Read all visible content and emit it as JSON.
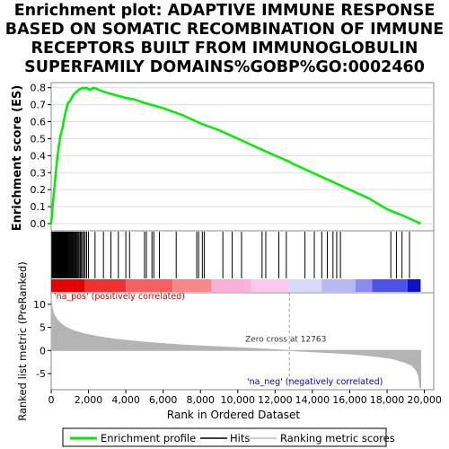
{
  "title_lines": [
    "Enrichment plot: ADAPTIVE IMMUNE RESPONSE",
    "BASED ON SOMATIC RECOMBINATION OF IMMUNE",
    "RECEPTORS BUILT FROM IMMUNOGLOBULIN",
    "SUPERFAMILY DOMAINS%GOBP%GO:0002460"
  ],
  "chart_data": {
    "type": "line",
    "x_max": 19800,
    "es_panel": {
      "ylabel": "Enrichment score (ES)",
      "ylim": [
        0,
        0.83
      ],
      "yticks": [
        0.0,
        0.1,
        0.2,
        0.3,
        0.4,
        0.5,
        0.6,
        0.7,
        0.8
      ],
      "line_color": "#00ee00",
      "series": [
        {
          "name": "Enrichment profile",
          "x": [
            0,
            100,
            200,
            300,
            400,
            500,
            600,
            700,
            800,
            900,
            1000,
            1100,
            1200,
            1300,
            1400,
            1500,
            1600,
            1700,
            1800,
            1900,
            2000,
            2100,
            2200,
            2300,
            2400,
            2600,
            3000,
            3500,
            4000,
            4500,
            5000,
            5500,
            6000,
            7000,
            8000,
            9000,
            10000,
            11000,
            12000,
            12763,
            13000,
            14000,
            15000,
            16000,
            17000,
            18000,
            19000,
            19800
          ],
          "y": [
            0.0,
            0.13,
            0.25,
            0.36,
            0.45,
            0.52,
            0.56,
            0.62,
            0.67,
            0.71,
            0.72,
            0.74,
            0.76,
            0.77,
            0.78,
            0.79,
            0.795,
            0.8,
            0.798,
            0.8,
            0.79,
            0.79,
            0.795,
            0.8,
            0.795,
            0.785,
            0.77,
            0.755,
            0.74,
            0.73,
            0.71,
            0.695,
            0.68,
            0.64,
            0.59,
            0.55,
            0.5,
            0.45,
            0.4,
            0.365,
            0.35,
            0.3,
            0.25,
            0.2,
            0.15,
            0.085,
            0.04,
            0.0
          ]
        }
      ]
    },
    "hits_panel": {
      "legend_label": "Hits",
      "hit_positions": [
        40,
        70,
        100,
        130,
        160,
        190,
        220,
        250,
        280,
        310,
        340,
        370,
        400,
        430,
        460,
        490,
        520,
        550,
        580,
        610,
        640,
        670,
        700,
        730,
        760,
        790,
        820,
        850,
        880,
        910,
        950,
        990,
        1030,
        1070,
        1110,
        1150,
        1200,
        1250,
        1300,
        1350,
        1400,
        1450,
        1500,
        1560,
        1620,
        1680,
        1750,
        1820,
        1900,
        2000,
        2350,
        2800,
        3200,
        3600,
        4000,
        4200,
        5000,
        5100,
        5400,
        5500,
        5800,
        6700,
        7800,
        7900,
        8100,
        8200,
        9200,
        9700,
        10200,
        11300,
        11500,
        12200,
        12600,
        13600,
        14100,
        14500,
        14800,
        15100,
        15300,
        15500,
        18200,
        18500,
        18800,
        19200
      ],
      "colorbar": [
        {
          "start": 0,
          "end": 1800,
          "color": "#e60000"
        },
        {
          "start": 1800,
          "end": 4000,
          "color": "#f03030"
        },
        {
          "start": 4000,
          "end": 6500,
          "color": "#f46060"
        },
        {
          "start": 6500,
          "end": 8600,
          "color": "#f88888"
        },
        {
          "start": 8600,
          "end": 10700,
          "color": "#fbb0d8"
        },
        {
          "start": 10700,
          "end": 12763,
          "color": "#fcc8f0"
        },
        {
          "start": 12763,
          "end": 14500,
          "color": "#d8d8f8"
        },
        {
          "start": 14500,
          "end": 16300,
          "color": "#b8b8f4"
        },
        {
          "start": 16300,
          "end": 17200,
          "color": "#8a8af0"
        },
        {
          "start": 17200,
          "end": 19100,
          "color": "#5050e8"
        },
        {
          "start": 19100,
          "end": 19800,
          "color": "#1010c8"
        }
      ]
    },
    "metric_panel": {
      "ylabel": "Ranked list metric (PreRanked)",
      "xlabel": "Rank in Ordered Dataset",
      "ylim": [
        -8.5,
        12.5
      ],
      "yticks": [
        -5,
        0,
        5,
        10
      ],
      "xticks": [
        0,
        2000,
        4000,
        6000,
        8000,
        10000,
        12000,
        14000,
        16000,
        18000,
        20000
      ],
      "xtick_labels": [
        "0",
        "2,000",
        "4,000",
        "6,000",
        "8,000",
        "10,000",
        "12,000",
        "14,000",
        "16,000",
        "18,000",
        "20,000"
      ],
      "zero_cross": 12763,
      "zero_cross_label": "Zero cross at 12763",
      "pos_label": "'na_pos' (positively correlated)",
      "neg_label": "'na_neg' (negatively correlated)",
      "fill_color": "#b4b4b4",
      "x": [
        0,
        50,
        150,
        300,
        500,
        800,
        1200,
        1800,
        2500,
        3500,
        5000,
        7000,
        9000,
        11000,
        12763,
        14000,
        15500,
        16500,
        17500,
        18300,
        18900,
        19300,
        19550,
        19700,
        19750,
        19800
      ],
      "y": [
        11.2,
        9.3,
        7.8,
        6.8,
        5.9,
        5.0,
        4.3,
        3.6,
        3.0,
        2.4,
        1.8,
        1.2,
        0.8,
        0.4,
        0.0,
        -0.3,
        -0.6,
        -0.9,
        -1.3,
        -1.8,
        -2.5,
        -3.2,
        -4.2,
        -5.5,
        -7.8,
        -8.1
      ]
    },
    "legend": {
      "items": [
        {
          "label": "Enrichment profile",
          "color": "#00ee00"
        },
        {
          "label": "Hits",
          "color": "#000000"
        },
        {
          "label": "Ranking metric scores",
          "color": "#c0c0c0"
        }
      ]
    }
  }
}
